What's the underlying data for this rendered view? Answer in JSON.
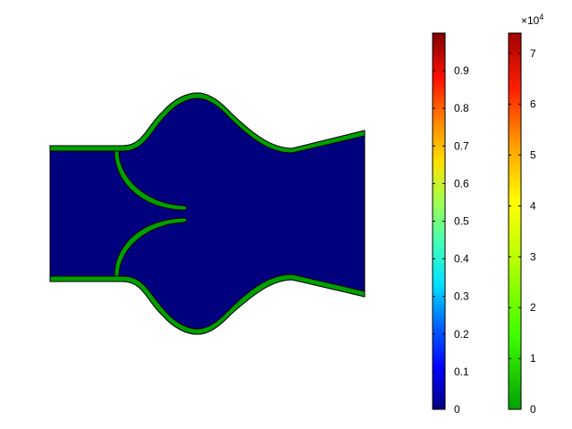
{
  "plot": {
    "domain_color": "#00007f",
    "wall_color": "#00a000",
    "wall_outline": "#000000"
  },
  "colorbar_left": {
    "range": [
      0,
      1
    ],
    "ticks": [
      "0",
      "0.1",
      "0.2",
      "0.3",
      "0.4",
      "0.5",
      "0.6",
      "0.7",
      "0.8",
      "0.9"
    ],
    "tick_values": [
      0,
      0.1,
      0.2,
      0.3,
      0.4,
      0.5,
      0.6,
      0.7,
      0.8,
      0.9
    ],
    "colormap": "rainbow"
  },
  "colorbar_right": {
    "range": [
      0,
      7.4
    ],
    "ticks": [
      "0",
      "1",
      "2",
      "3",
      "4",
      "5",
      "6",
      "7"
    ],
    "tick_values": [
      0,
      1,
      2,
      3,
      4,
      5,
      6,
      7
    ],
    "colormap": "traffic",
    "exponent_base": "×10",
    "exponent_power": "4"
  }
}
